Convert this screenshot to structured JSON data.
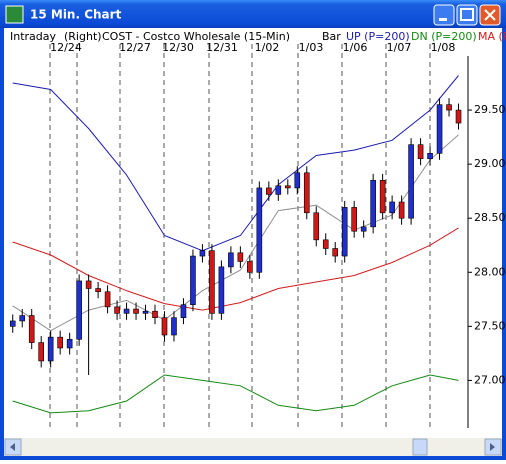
{
  "window": {
    "title": "15 Min. Chart"
  },
  "header": {
    "mode": "Intraday",
    "axis_side": "(Right)",
    "symbol": "COST - Costco Wholesale (15-Min)"
  },
  "chart_data": {
    "type": "candlestick",
    "price_label": "Bar",
    "x_labels": [
      "12/24",
      "12/27",
      "12/30",
      "12/31",
      "1/02",
      "1/03",
      "1/06",
      "1/07",
      "1/08"
    ],
    "open": [
      27.5,
      27.55,
      27.6,
      27.35,
      27.18,
      27.4,
      27.3,
      27.38,
      27.92,
      27.85,
      27.82,
      27.68,
      27.62,
      27.66,
      27.62,
      27.64,
      27.58,
      27.42,
      27.58,
      27.7,
      28.15,
      28.2,
      27.62,
      28.05,
      28.18,
      28.1,
      28.0,
      28.78,
      28.72,
      28.8,
      28.78,
      28.92,
      28.55,
      28.3,
      28.22,
      28.15,
      28.6,
      28.38,
      28.42,
      28.85,
      28.55,
      28.65,
      28.5,
      29.18,
      29.05,
      29.1,
      29.55,
      29.5
    ],
    "high": [
      27.61,
      27.66,
      27.66,
      27.41,
      27.46,
      27.46,
      27.44,
      27.98,
      27.98,
      27.91,
      27.88,
      27.74,
      27.72,
      27.72,
      27.7,
      27.7,
      27.64,
      27.64,
      27.76,
      28.21,
      28.26,
      28.26,
      28.11,
      28.24,
      28.24,
      28.16,
      28.84,
      28.84,
      28.86,
      28.86,
      28.98,
      28.98,
      28.61,
      28.36,
      28.28,
      28.66,
      28.66,
      28.48,
      28.91,
      28.91,
      28.71,
      28.71,
      29.24,
      29.24,
      29.16,
      29.61,
      29.61,
      29.56
    ],
    "low": [
      27.44,
      27.49,
      27.29,
      27.12,
      27.12,
      27.24,
      27.24,
      27.32,
      27.05,
      27.76,
      27.62,
      27.56,
      27.56,
      27.56,
      27.56,
      27.52,
      27.36,
      27.36,
      27.52,
      27.64,
      28.09,
      27.56,
      27.56,
      27.99,
      28.04,
      27.94,
      27.94,
      28.66,
      28.66,
      28.72,
      28.72,
      28.49,
      28.24,
      28.16,
      28.09,
      28.09,
      28.32,
      28.32,
      28.36,
      28.49,
      28.49,
      28.44,
      28.44,
      28.99,
      28.99,
      29.04,
      29.44,
      29.32
    ],
    "close": [
      27.55,
      27.6,
      27.35,
      27.18,
      27.4,
      27.3,
      27.38,
      27.92,
      27.85,
      27.82,
      27.68,
      27.62,
      27.66,
      27.62,
      27.64,
      27.58,
      27.42,
      27.58,
      27.7,
      28.15,
      28.2,
      27.62,
      28.05,
      28.18,
      28.1,
      28.0,
      28.78,
      28.72,
      28.8,
      28.78,
      28.92,
      28.55,
      28.3,
      28.22,
      28.15,
      28.6,
      28.38,
      28.42,
      28.85,
      28.55,
      28.65,
      28.5,
      29.18,
      29.05,
      29.1,
      29.55,
      29.5,
      29.38
    ],
    "up_color": "#1f2fd0",
    "down_color": "#d01818",
    "line_x": [
      0,
      4,
      8,
      12,
      16,
      20,
      24,
      28,
      32,
      36,
      40,
      44,
      47
    ],
    "series": [
      {
        "name": "UP (P=200)",
        "color": "#1c1cb0",
        "values": [
          29.75,
          29.69,
          29.33,
          28.9,
          28.34,
          28.2,
          28.34,
          28.81,
          29.08,
          29.13,
          29.22,
          29.5,
          29.82
        ]
      },
      {
        "name": "DN (P=200)",
        "color": "#128a12",
        "values": [
          26.81,
          26.7,
          26.72,
          26.81,
          27.05,
          27.0,
          26.95,
          26.77,
          26.72,
          26.77,
          26.95,
          27.05,
          27.0
        ]
      },
      {
        "name": "MA (P=",
        "color": "#d41c1c",
        "values": [
          28.28,
          28.16,
          27.97,
          27.83,
          27.71,
          27.65,
          27.72,
          27.85,
          27.91,
          27.97,
          28.09,
          28.25,
          28.41
        ]
      },
      {
        "color": "#909090",
        "values": [
          27.69,
          27.46,
          27.65,
          27.74,
          27.56,
          27.83,
          28.02,
          28.57,
          28.62,
          28.39,
          28.53,
          29.04,
          29.27
        ]
      }
    ],
    "xlim": [
      -0.5,
      48
    ],
    "ylim": [
      26.56,
      30.0
    ],
    "yticks": [
      {
        "value": 27,
        "label": "27.00"
      },
      {
        "value": 27.5,
        "label": "27.50"
      },
      {
        "value": 28,
        "label": "28.00"
      },
      {
        "value": 28.5,
        "label": "28.50"
      },
      {
        "value": 29,
        "label": "29.00"
      },
      {
        "value": 29.5,
        "label": "29.50"
      }
    ]
  }
}
